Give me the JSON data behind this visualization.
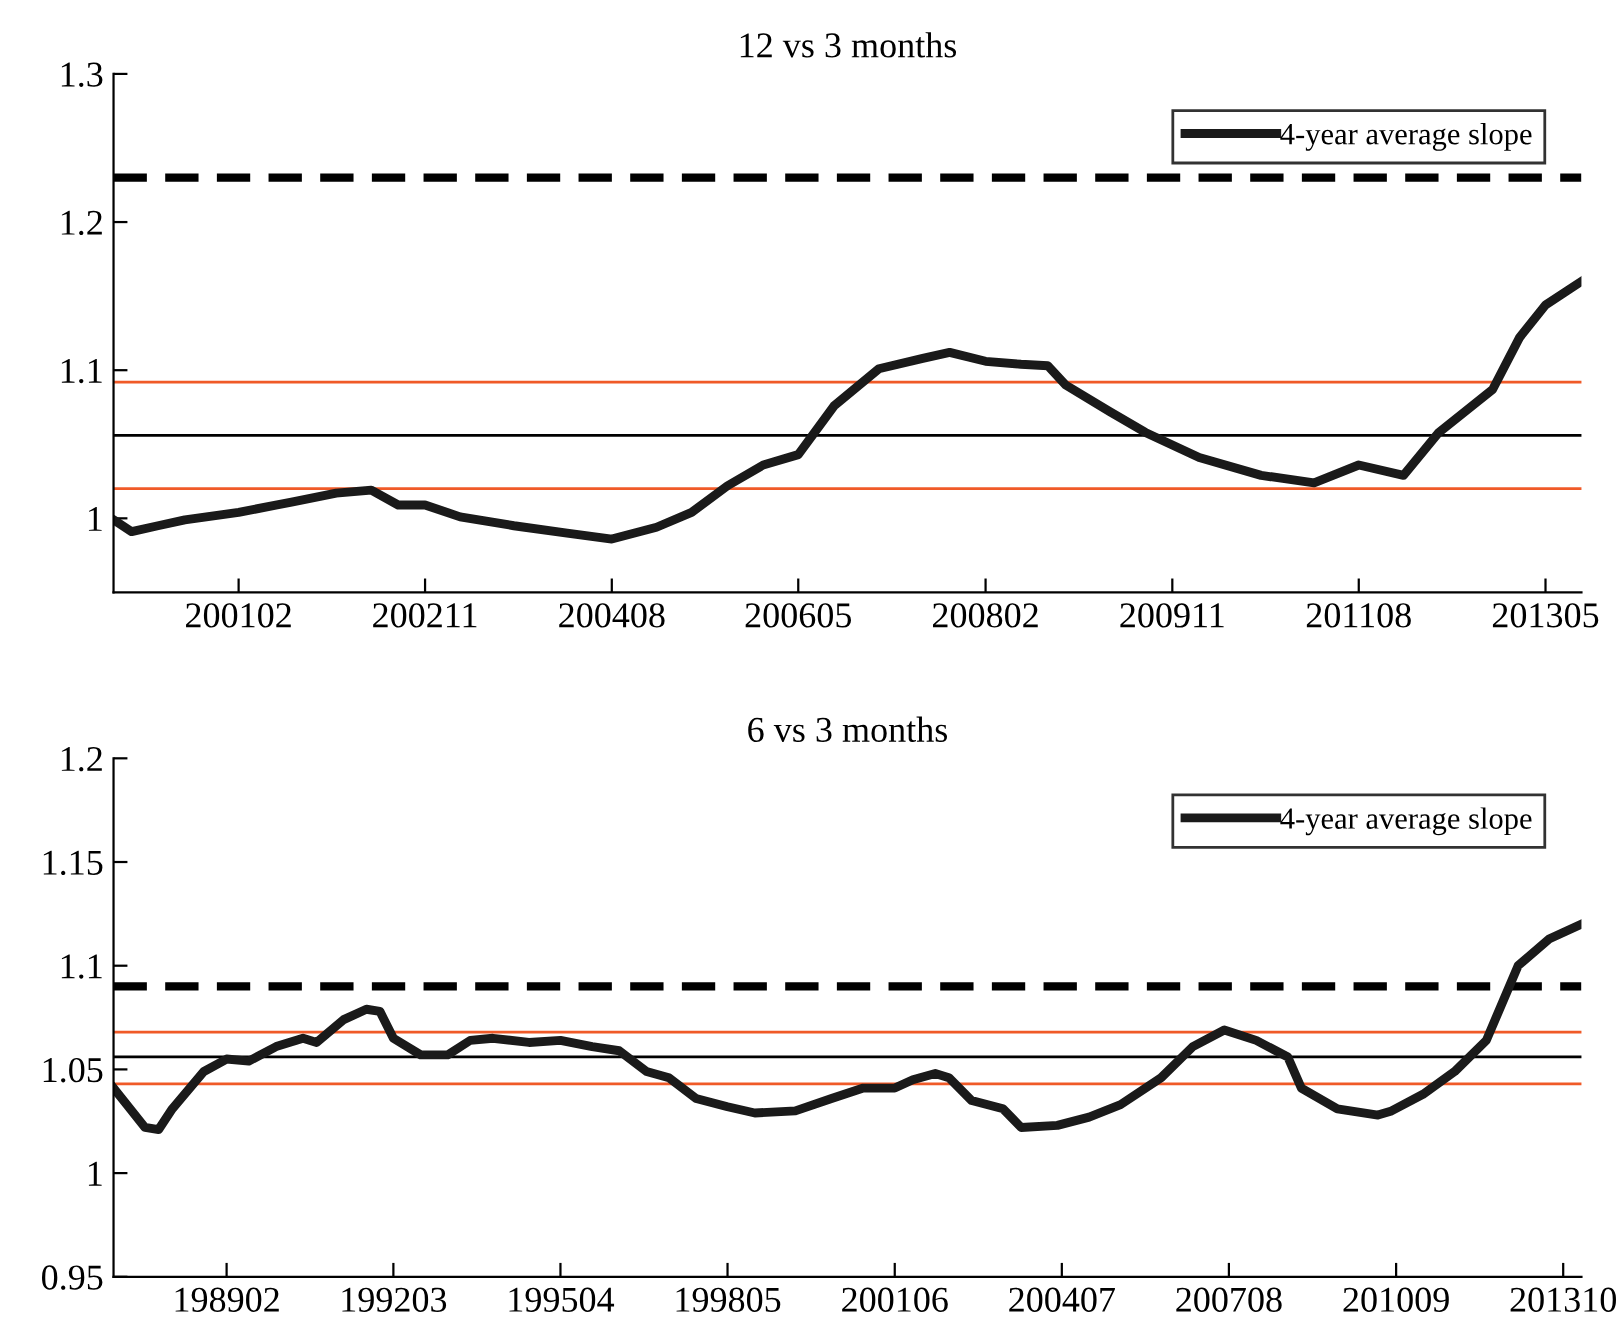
{
  "chart_data": [
    {
      "type": "line",
      "title": "12 vs 3 months",
      "legend": "top right",
      "grid": false,
      "line_style": "solid",
      "marker": "none",
      "xlim": [
        "1999-12",
        "2013-09"
      ],
      "ylim": [
        0.95,
        1.3
      ],
      "yticks": [
        1,
        1.1,
        1.2,
        1.3
      ],
      "xticks": [
        {
          "value": "2001-02",
          "label": "200102"
        },
        {
          "value": "2002-11",
          "label": "200211"
        },
        {
          "value": "2004-08",
          "label": "200408"
        },
        {
          "value": "2006-05",
          "label": "200605"
        },
        {
          "value": "2008-02",
          "label": "200802"
        },
        {
          "value": "2009-11",
          "label": "200911"
        },
        {
          "value": "2011-08",
          "label": "201108"
        },
        {
          "value": "2013-05",
          "label": "201305"
        }
      ],
      "ref_lines": [
        {
          "axis": "y",
          "value": 1.23,
          "label": null,
          "color": "#000000",
          "line_style": "dashed"
        },
        {
          "axis": "y",
          "value": 1.092,
          "label": null,
          "color": "#f05a28",
          "line_style": "solid"
        },
        {
          "axis": "y",
          "value": 1.056,
          "label": null,
          "color": "#000000",
          "line_style": "solid"
        },
        {
          "axis": "y",
          "value": 1.02,
          "label": null,
          "color": "#f05a28",
          "line_style": "solid"
        }
      ],
      "series": [
        {
          "name": "4-year average slope",
          "color": "#1a1a1a",
          "x": [
            "1999-12",
            "2000-02",
            "2000-05",
            "2000-08",
            "2001-02",
            "2001-08",
            "2002-01",
            "2002-05",
            "2002-08",
            "2002-11",
            "2003-03",
            "2003-09",
            "2004-03",
            "2004-08",
            "2005-01",
            "2005-05",
            "2005-09",
            "2006-01",
            "2006-05",
            "2006-09",
            "2007-02",
            "2007-07",
            "2007-10",
            "2008-02",
            "2008-06",
            "2008-09",
            "2008-11",
            "2009-04",
            "2009-08",
            "2010-02",
            "2010-09",
            "2011-03",
            "2011-08",
            "2012-01",
            "2012-05",
            "2012-11",
            "2013-02",
            "2013-05",
            "2013-09"
          ],
          "values": [
            0.999,
            0.991,
            0.995,
            0.999,
            1.004,
            1.011,
            1.017,
            1.019,
            1.009,
            1.009,
            1.001,
            0.995,
            0.99,
            0.986,
            0.994,
            1.004,
            1.022,
            1.036,
            1.043,
            1.076,
            1.101,
            1.108,
            1.112,
            1.106,
            1.104,
            1.103,
            1.09,
            1.072,
            1.058,
            1.041,
            1.029,
            1.024,
            1.036,
            1.029,
            1.058,
            1.087,
            1.122,
            1.144,
            1.16
          ]
        }
      ]
    },
    {
      "type": "line",
      "title": "6 vs 3 months",
      "legend": "top right",
      "grid": false,
      "line_style": "solid",
      "marker": "none",
      "xlim": [
        "1987-01",
        "2014-02"
      ],
      "ylim": [
        0.95,
        1.2
      ],
      "yticks": [
        0.95,
        1,
        1.05,
        1.1,
        1.15,
        1.2
      ],
      "xticks": [
        {
          "value": "1989-02",
          "label": "198902"
        },
        {
          "value": "1992-03",
          "label": "199203"
        },
        {
          "value": "1995-04",
          "label": "199504"
        },
        {
          "value": "1998-05",
          "label": "199805"
        },
        {
          "value": "2001-06",
          "label": "200106"
        },
        {
          "value": "2004-07",
          "label": "200407"
        },
        {
          "value": "2007-08",
          "label": "200708"
        },
        {
          "value": "2010-09",
          "label": "201009"
        },
        {
          "value": "2013-10",
          "label": "201310"
        }
      ],
      "ref_lines": [
        {
          "axis": "y",
          "value": 1.09,
          "label": null,
          "color": "#000000",
          "line_style": "dashed"
        },
        {
          "axis": "y",
          "value": 1.068,
          "label": null,
          "color": "#f05a28",
          "line_style": "solid"
        },
        {
          "axis": "y",
          "value": 1.056,
          "label": null,
          "color": "#000000",
          "line_style": "solid"
        },
        {
          "axis": "y",
          "value": 1.043,
          "label": null,
          "color": "#f05a28",
          "line_style": "solid"
        }
      ],
      "series": [
        {
          "name": "4-year average slope",
          "color": "#1a1a1a",
          "x": [
            "1987-01",
            "1987-04",
            "1987-08",
            "1987-11",
            "1988-02",
            "1988-09",
            "1989-02",
            "1989-07",
            "1990-01",
            "1990-07",
            "1990-10",
            "1991-04",
            "1991-09",
            "1991-12",
            "1992-03",
            "1992-09",
            "1993-03",
            "1993-08",
            "1994-01",
            "1994-09",
            "1995-04",
            "1995-11",
            "1996-05",
            "1996-11",
            "1997-04",
            "1997-10",
            "1998-05",
            "1998-11",
            "1999-08",
            "2000-04",
            "2000-11",
            "2001-06",
            "2001-10",
            "2002-03",
            "2002-06",
            "2002-11",
            "2003-06",
            "2003-10",
            "2004-06",
            "2005-01",
            "2005-08",
            "2006-05",
            "2006-12",
            "2007-07",
            "2008-02",
            "2008-09",
            "2008-12",
            "2009-08",
            "2010-05",
            "2010-08",
            "2011-03",
            "2011-10",
            "2012-05",
            "2012-12",
            "2013-07",
            "2014-02"
          ],
          "values": [
            1.041,
            1.033,
            1.022,
            1.021,
            1.031,
            1.049,
            1.055,
            1.054,
            1.061,
            1.065,
            1.063,
            1.074,
            1.079,
            1.078,
            1.065,
            1.057,
            1.057,
            1.064,
            1.065,
            1.063,
            1.064,
            1.061,
            1.059,
            1.049,
            1.046,
            1.036,
            1.032,
            1.029,
            1.03,
            1.036,
            1.041,
            1.041,
            1.045,
            1.048,
            1.046,
            1.035,
            1.031,
            1.022,
            1.023,
            1.027,
            1.033,
            1.046,
            1.061,
            1.069,
            1.064,
            1.056,
            1.041,
            1.031,
            1.028,
            1.03,
            1.038,
            1.049,
            1.064,
            1.1,
            1.113,
            1.12
          ]
        }
      ]
    }
  ]
}
